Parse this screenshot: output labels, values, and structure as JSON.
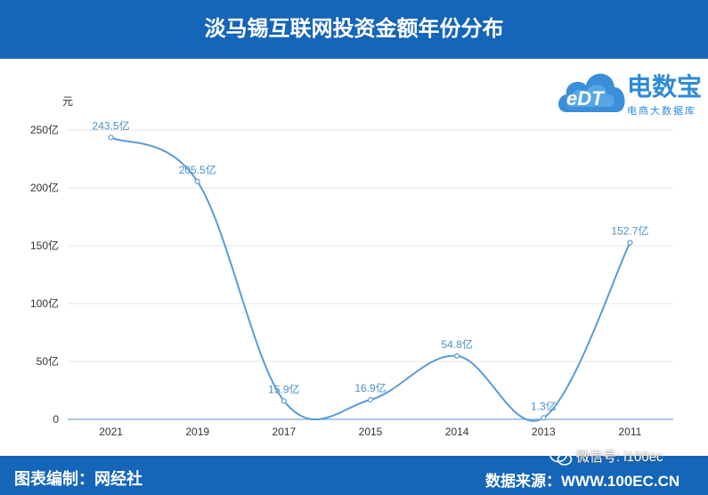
{
  "header": {
    "title": "淡马锡互联网投资金额年份分布"
  },
  "footer": {
    "left_text": "图表编制：网经社",
    "right_text": "数据来源：WWW.100EC.CN",
    "wechat_text": "微信号: i100ec"
  },
  "logo": {
    "main_text": "电数宝",
    "sub_text": "电商大数据库",
    "cloud_text": "eDT"
  },
  "colors": {
    "header_bg": "#1565b8",
    "line": "#5b9bd5",
    "label": "#4a90c8"
  },
  "chart_data": {
    "type": "line",
    "ylabel": "元",
    "categories": [
      "2021",
      "2019",
      "2017",
      "2015",
      "2014",
      "2013",
      "2011"
    ],
    "values": [
      243.5,
      205.5,
      15.9,
      16.9,
      54.8,
      1.3,
      152.7
    ],
    "data_labels": [
      "243.5亿",
      "205.5亿",
      "15.9亿",
      "16.9亿",
      "54.8亿",
      "1.3亿",
      "152.7亿"
    ],
    "y_ticks": [
      0,
      50,
      100,
      150,
      200,
      250
    ],
    "y_tick_labels": [
      "0",
      "50亿",
      "100亿",
      "150亿",
      "200亿",
      "250亿"
    ],
    "ylim": [
      0,
      250
    ],
    "grid": true,
    "smooth": true
  }
}
